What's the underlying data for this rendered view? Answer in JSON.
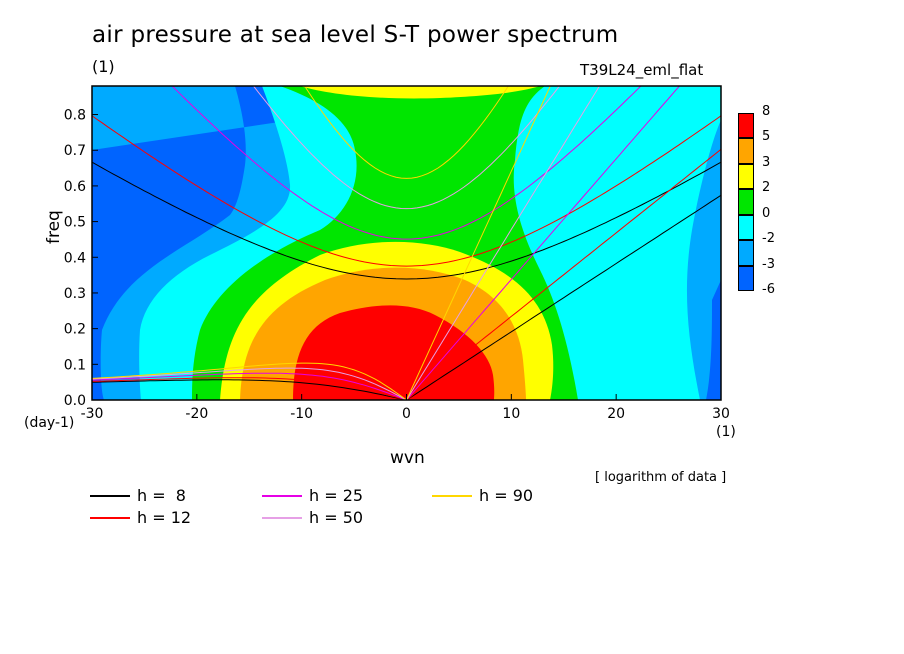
{
  "chart_data": {
    "type": "heatmap",
    "title": "air pressure at sea level S-T power spectrum",
    "title_unit": "(1)",
    "experiment": "T39L24_eml_flat",
    "xlabel": "wvn",
    "x_unit": "(1)",
    "ylabel": "freq",
    "y_unit": "(day-1)",
    "xlim": [
      -30,
      30
    ],
    "ylim": [
      0,
      0.88
    ],
    "xticks": [
      "-30",
      "-20",
      "-10",
      "0",
      "10",
      "20",
      "30"
    ],
    "yticks": [
      "0.0",
      "0.1",
      "0.2",
      "0.3",
      "0.4",
      "0.5",
      "0.6",
      "0.7",
      "0.8"
    ],
    "note": "[ logarithm of data ]",
    "colorbar": {
      "labels": [
        "8",
        "5",
        "3",
        "2",
        "0",
        "-2",
        "-3",
        "-6"
      ],
      "colors": [
        "#ff0000",
        "#ffa500",
        "#ffff00",
        "#00e600",
        "#00ffff",
        "#00aaff",
        "#0064ff",
        "#0000ff"
      ]
    },
    "levels_colors": {
      "lt_-3": "#0064ff",
      "-3_-2": "#00aaff",
      "-2_0": "#00ffff",
      "0_2": "#00e600",
      "2_3": "#ffff00",
      "3_5": "#ffa500",
      "gt_5": "#ff0000"
    },
    "dispersion_curves": [
      {
        "label": "h =  8",
        "h": 8,
        "color": "#000000"
      },
      {
        "label": "h = 12",
        "h": 12,
        "color": "#ff0000"
      },
      {
        "label": "h = 25",
        "h": 25,
        "color": "#e600e6"
      },
      {
        "label": "h = 50",
        "h": 50,
        "color": "#e6a0e6"
      },
      {
        "label": "h = 90",
        "h": 90,
        "color": "#ffd700"
      }
    ],
    "plot_background": "#0064ff",
    "grid": false
  }
}
